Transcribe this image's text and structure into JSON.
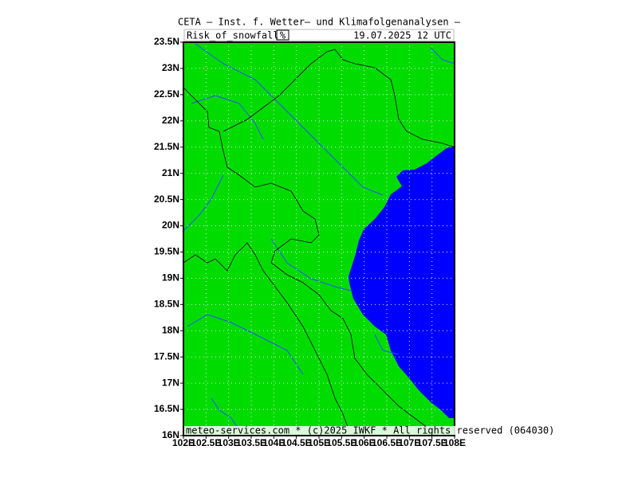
{
  "header": {
    "title": "CETA — Inst. f. Wetter— und Klimafolgenanalysen —",
    "variable": "Risk_of_snowfall",
    "unit": "%",
    "datetime": "19.07.2025 12 UTC"
  },
  "footer": "meteo-services.com * (c)2025 IWKF * All rights reserved (064030)",
  "axes": {
    "lat_labels": [
      "23.5N",
      "23N",
      "22.5N",
      "22N",
      "21.5N",
      "21N",
      "20.5N",
      "20N",
      "19.5N",
      "19N",
      "18.5N",
      "18N",
      "17.5N",
      "17N",
      "16.5N",
      "16N"
    ],
    "lon_labels": [
      "102E",
      "102.5E",
      "103E",
      "103.5E",
      "104E",
      "104.5E",
      "105E",
      "105.5E",
      "106E",
      "106.5E",
      "107E",
      "107.5E",
      "108E"
    ]
  }
}
